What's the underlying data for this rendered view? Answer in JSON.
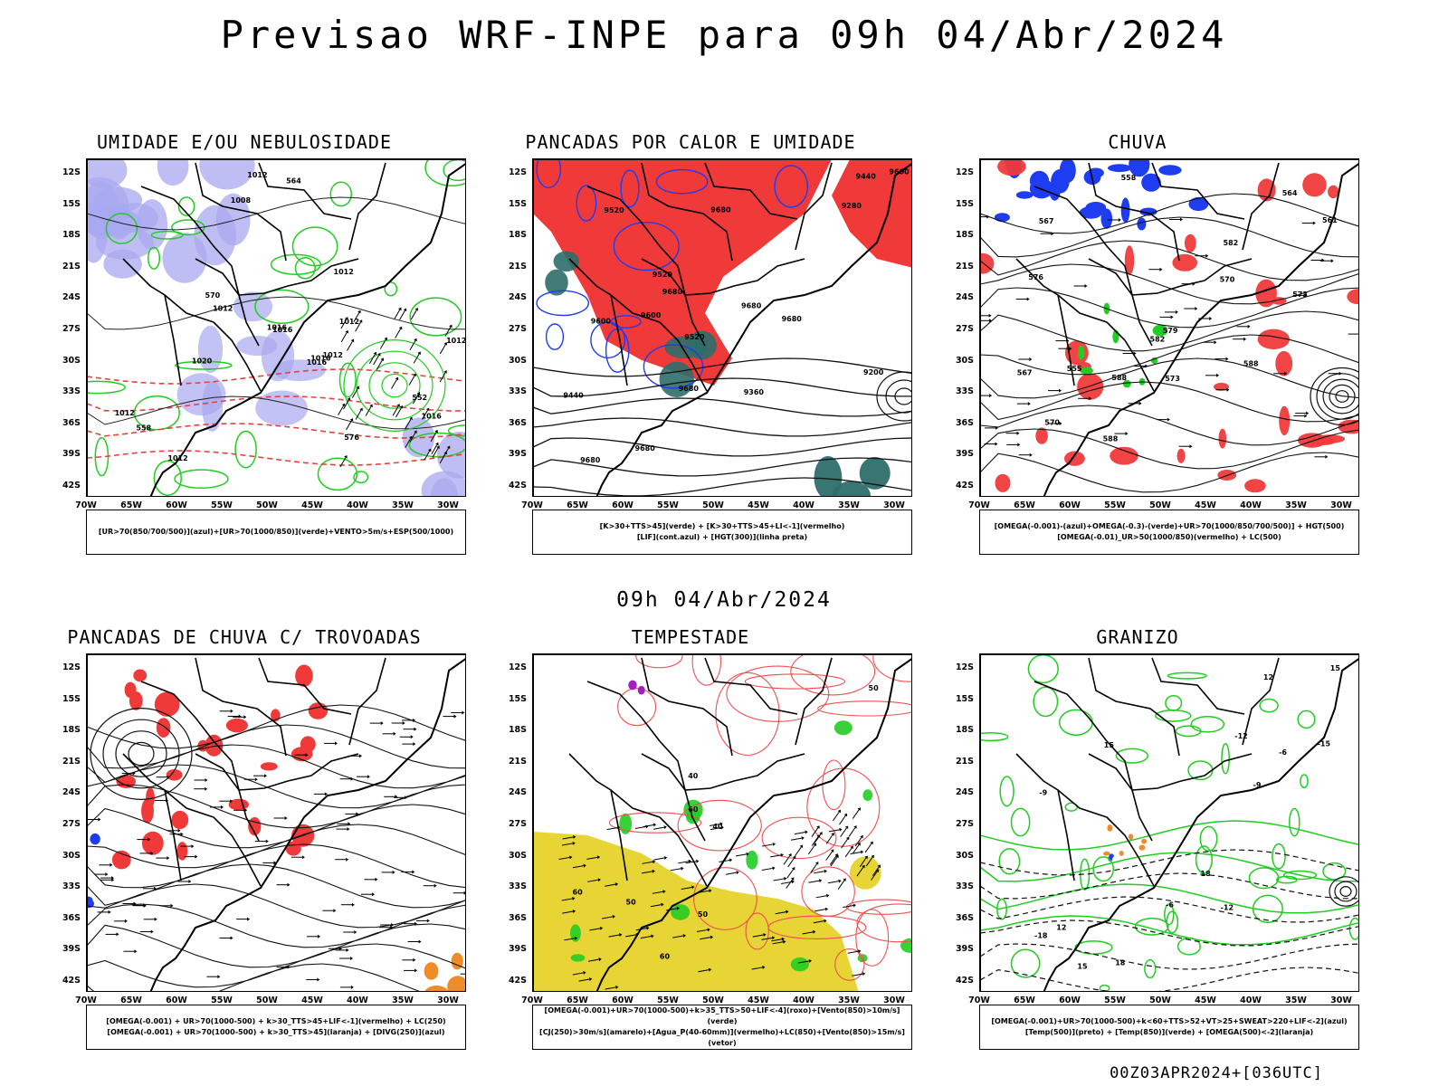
{
  "title": "Previsao WRF-INPE  para 09h 04/Abr/2024",
  "subtitle": "09h 04/Abr/2024",
  "footer": "00Z03APR2024+[036UTC]",
  "lat_labels": [
    "12S",
    "15S",
    "18S",
    "21S",
    "24S",
    "27S",
    "30S",
    "33S",
    "36S",
    "39S",
    "42S"
  ],
  "lon_labels": [
    "70W",
    "65W",
    "60W",
    "55W",
    "50W",
    "45W",
    "40W",
    "35W",
    "30W"
  ],
  "colors": {
    "red": "#f03a3a",
    "green": "#22cc22",
    "blue": "#1e3cf0",
    "lavender": "#a8a8f0",
    "yellow": "#e6d22a",
    "orange": "#f08c28",
    "teal": "#2e6e6a",
    "purple": "#a020c0"
  },
  "panels": [
    {
      "title": "UMIDADE E/OU NEBULOSIDADE",
      "legend": [
        "[UR>70(850/700/500)](azul)+[UR>70(1000/850)](verde)+VENTO>5m/s+ESP(500/1000)"
      ],
      "labels": [
        "1012",
        "1012",
        "1012",
        "1016",
        "1012",
        "1016",
        "1020",
        "1012",
        "1016",
        "1016",
        "1008",
        "1012",
        "1016",
        "1012",
        "1012",
        "576",
        "570",
        "564",
        "558",
        "552"
      ]
    },
    {
      "title": "PANCADAS POR CALOR E UMIDADE",
      "legend": [
        "[K>30+TTS>45](verde) + [K>30+TTS>45+LI<-1](vermelho)",
        "[LIF](cont.azul) + [HGT(300)](linha preta)"
      ],
      "labels": [
        "9680",
        "9680",
        "9680",
        "9680",
        "9680",
        "9600",
        "9680",
        "9680",
        "9600",
        "9520",
        "9520",
        "9440",
        "9360",
        "9280",
        "9200",
        "9600",
        "9520",
        "9440"
      ]
    },
    {
      "title": "CHUVA",
      "legend": [
        "[OMEGA(-0.001)-(azul)+OMEGA(-0.3)-(verde)+UR>70(1000/850/700/500)] + HGT(500)",
        "[OMEGA(-0.01)_UR>50(1000/850)(vermelho) + LC(500)"
      ],
      "labels": [
        "588",
        "588",
        "582",
        "588",
        "582",
        "579",
        "576",
        "573",
        "570",
        "567",
        "561",
        "558",
        "555",
        "567",
        "570",
        "564",
        "573"
      ]
    },
    {
      "title": "PANCADAS DE CHUVA C/ TROVOADAS",
      "legend": [
        "[OMEGA(-0.001) + UR>70(1000-500) + k>30_TTS>45+LIF<-1](vermelho) + LC(250)",
        "[OMEGA(-0.001) + UR>70(1000-500) + k>30_TTS>45](laranja) + [DIVG(250)](azul)"
      ],
      "labels": []
    },
    {
      "title": "TEMPESTADE",
      "legend": [
        "[OMEGA(-0.001)+UR>70(1000-500)+k>35_TTS>50+LIF<-4](roxo)+[Vento(850)>10m/s](verde)",
        "[CJ(250)>30m/s](amarelo)+[Agua_P(40-60mm)](vermelho)+LC(850)+[Vento(850)>15m/s](vetor)"
      ],
      "labels": [
        "50",
        "60",
        "60",
        "60",
        "50",
        "40",
        "50",
        "40"
      ]
    },
    {
      "title": "GRANIZO",
      "legend": [
        "[OMEGA(-0.001)+UR>70(1000-500)+k<60+TTS>52+VT>25+SWEAT>220+LIF<-2](azul)",
        "[Temp(500)](preto) + [Temp(850)](verde) + [OMEGA(500)<-2](laranja)"
      ],
      "labels": [
        "-6",
        "-9",
        "-12",
        "-15",
        "-18",
        "15",
        "18",
        "12",
        "15",
        "18",
        "15",
        "12",
        "-9",
        "-12",
        "-6"
      ]
    }
  ]
}
